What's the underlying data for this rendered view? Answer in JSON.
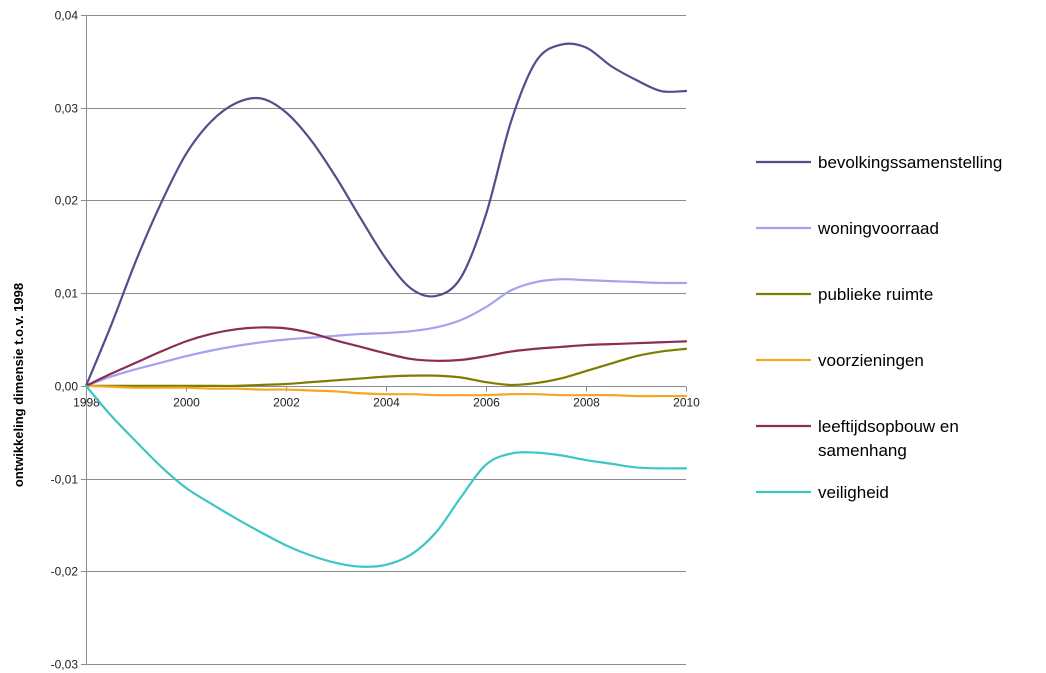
{
  "chart_data": {
    "type": "line",
    "title": "",
    "xlabel": "",
    "ylabel": "ontwikkeling dimensie t.o.v. 1998",
    "xlim": [
      1998,
      2010
    ],
    "ylim": [
      -0.03,
      0.04
    ],
    "x_ticks": [
      1998,
      2000,
      2002,
      2004,
      2006,
      2008,
      2010
    ],
    "x_tick_labels": [
      "1998",
      "2000",
      "2002",
      "2004",
      "2006",
      "2008",
      "2010"
    ],
    "y_ticks": [
      -0.03,
      -0.02,
      -0.01,
      0.0,
      0.01,
      0.02,
      0.03,
      0.04
    ],
    "y_tick_labels": [
      "-0,03",
      "-0,02",
      "-0,01",
      "0,00",
      "0,01",
      "0,02",
      "0,03",
      "0,04"
    ],
    "grid": "horizontal",
    "legend_position": "right",
    "x": [
      1998,
      1998.5,
      1999,
      1999.5,
      2000,
      2000.5,
      2001,
      2001.5,
      2002,
      2002.5,
      2003,
      2003.5,
      2004,
      2004.5,
      2005,
      2005.5,
      2006,
      2006.5,
      2007,
      2007.5,
      2008,
      2008.5,
      2009,
      2009.5,
      2010
    ],
    "series": [
      {
        "name": "bevolkingssamenstelling",
        "color": "#4f4f8c",
        "values": [
          0.0,
          0.0065,
          0.0135,
          0.0197,
          0.025,
          0.0285,
          0.0305,
          0.031,
          0.0295,
          0.0265,
          0.0225,
          0.018,
          0.0137,
          0.0105,
          0.0097,
          0.0117,
          0.0185,
          0.0285,
          0.035,
          0.0368,
          0.0365,
          0.0345,
          0.033,
          0.0318,
          0.0318
        ]
      },
      {
        "name": "woningvoorraad",
        "color": "#a3a3ee",
        "values": [
          0.0,
          0.001,
          0.0018,
          0.0025,
          0.0032,
          0.0038,
          0.0043,
          0.0047,
          0.005,
          0.0052,
          0.0054,
          0.0056,
          0.0057,
          0.0059,
          0.0063,
          0.0071,
          0.0085,
          0.0103,
          0.0112,
          0.0115,
          0.0114,
          0.0113,
          0.0112,
          0.0111,
          0.0111
        ]
      },
      {
        "name": "publieke ruimte",
        "color": "#7d7d00",
        "values": [
          0.0,
          0.0,
          0.0,
          0.0,
          0.0,
          0.0,
          0.0,
          0.0001,
          0.0002,
          0.0004,
          0.0006,
          0.0008,
          0.001,
          0.0011,
          0.0011,
          0.0009,
          0.0004,
          0.0001,
          0.0003,
          0.0008,
          0.0016,
          0.0024,
          0.0032,
          0.0037,
          0.004
        ]
      },
      {
        "name": "voorzieningen",
        "color": "#f5a623",
        "values": [
          0.0,
          -0.0001,
          -0.0002,
          -0.0002,
          -0.0002,
          -0.0003,
          -0.0003,
          -0.0004,
          -0.0004,
          -0.0005,
          -0.0006,
          -0.0008,
          -0.0009,
          -0.0009,
          -0.001,
          -0.001,
          -0.001,
          -0.0009,
          -0.0009,
          -0.001,
          -0.001,
          -0.001,
          -0.0011,
          -0.0011,
          -0.0011
        ]
      },
      {
        "name": "leeftijdsopbouw en samenhang",
        "color": "#8b2d55",
        "values": [
          0.0,
          0.0013,
          0.0025,
          0.0037,
          0.0048,
          0.0056,
          0.0061,
          0.0063,
          0.0062,
          0.0057,
          0.0049,
          0.0042,
          0.0035,
          0.0029,
          0.0027,
          0.0028,
          0.0032,
          0.0037,
          0.004,
          0.0042,
          0.0044,
          0.0045,
          0.0046,
          0.0047,
          0.0048
        ]
      },
      {
        "name": "veiligheid",
        "color": "#3cc6c6",
        "values": [
          0.0,
          -0.0032,
          -0.006,
          -0.0087,
          -0.011,
          -0.0127,
          -0.0143,
          -0.0158,
          -0.0172,
          -0.0183,
          -0.0191,
          -0.0195,
          -0.0193,
          -0.0182,
          -0.0158,
          -0.012,
          -0.0085,
          -0.0073,
          -0.0072,
          -0.0075,
          -0.008,
          -0.0084,
          -0.0088,
          -0.0089,
          -0.0089
        ]
      }
    ]
  }
}
